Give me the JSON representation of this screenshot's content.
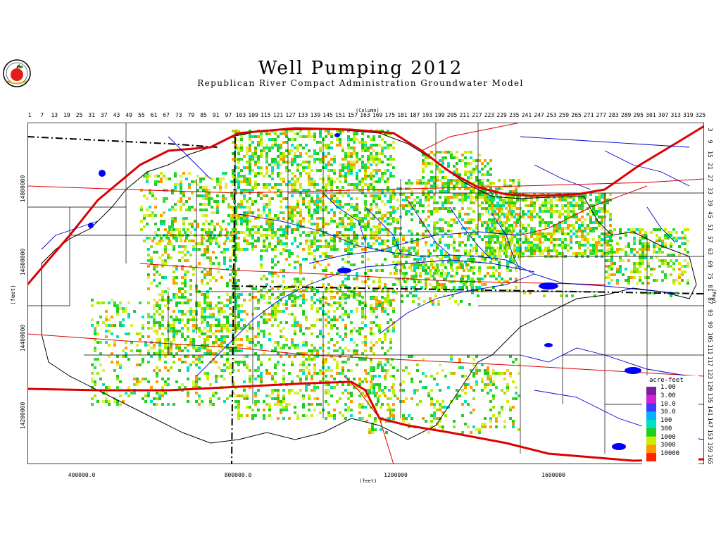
{
  "page": {
    "title": "Well Pumping  2012",
    "subtitle": "Republican  River  Compact  Administration  Groundwater  Model",
    "logo_icon": "apple-logo-icon"
  },
  "top_axis": {
    "title": "(Column)",
    "ticks": [
      "1",
      "7",
      "13",
      "19",
      "25",
      "31",
      "37",
      "43",
      "49",
      "55",
      "61",
      "67",
      "73",
      "79",
      "85",
      "91",
      "97",
      "103",
      "109",
      "115",
      "121",
      "127",
      "133",
      "139",
      "145",
      "151",
      "157",
      "163",
      "169",
      "175",
      "181",
      "187",
      "193",
      "199",
      "205",
      "211",
      "217",
      "223",
      "229",
      "235",
      "241",
      "247",
      "253",
      "259",
      "265",
      "271",
      "277",
      "283",
      "289",
      "295",
      "301",
      "307",
      "313",
      "319",
      "325"
    ]
  },
  "right_axis": {
    "title": "(Row)",
    "ticks": [
      "3",
      "9",
      "15",
      "21",
      "27",
      "33",
      "39",
      "45",
      "51",
      "57",
      "63",
      "69",
      "75",
      "81",
      "87",
      "93",
      "99",
      "105",
      "111",
      "117",
      "123",
      "129",
      "135",
      "141",
      "147",
      "153",
      "159",
      "165"
    ]
  },
  "left_axis": {
    "title": "(feet)",
    "ticks": [
      "14800000",
      "14600000",
      "14400000",
      "14200000"
    ]
  },
  "bottom_axis": {
    "title": "(feet)",
    "ticks": [
      "400000.0",
      "800000.0",
      "1200000",
      "1600000"
    ]
  },
  "legend": {
    "title": "acre-feet",
    "items": [
      {
        "label": "1.00",
        "color": "#7a1fa2"
      },
      {
        "label": "3.00",
        "color": "#d21fd2"
      },
      {
        "label": "10.0",
        "color": "#3c3cff"
      },
      {
        "label": "30.0",
        "color": "#00b4ff"
      },
      {
        "label": "100",
        "color": "#00e0c0"
      },
      {
        "label": "300",
        "color": "#22cc22"
      },
      {
        "label": "1000",
        "color": "#ccee00"
      },
      {
        "label": "3000",
        "color": "#ff9900"
      },
      {
        "label": "10000",
        "color": "#ff2200"
      }
    ]
  },
  "colors": {
    "boundary": "#000000",
    "roads": "#dd0000",
    "rivers": "#0000cc",
    "pumping_low": "#22cc22",
    "pumping_high": "#ccee00"
  }
}
